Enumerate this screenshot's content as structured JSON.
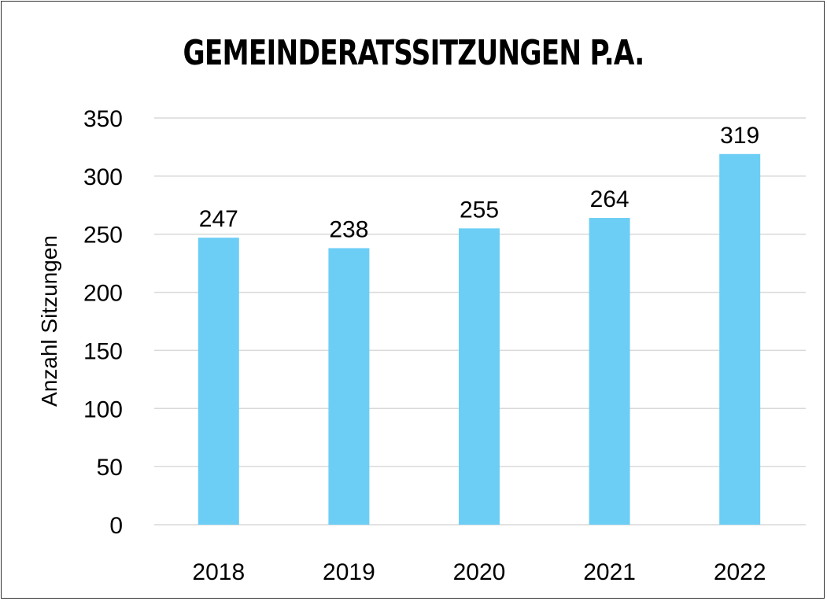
{
  "chart_data": {
    "type": "bar",
    "title": "GEMEINDERATSSITZUNGEN P.A.",
    "xlabel": "",
    "ylabel": "Anzahl Sitzungen",
    "categories": [
      "2018",
      "2019",
      "2020",
      "2021",
      "2022"
    ],
    "values": [
      247,
      238,
      255,
      264,
      319
    ],
    "ylim": [
      0,
      350
    ],
    "yticks": [
      0,
      50,
      100,
      150,
      200,
      250,
      300,
      350
    ],
    "grid": true,
    "legend": "none",
    "bar_color": "#6dcef5",
    "grid_color": "#d9d9d9"
  }
}
